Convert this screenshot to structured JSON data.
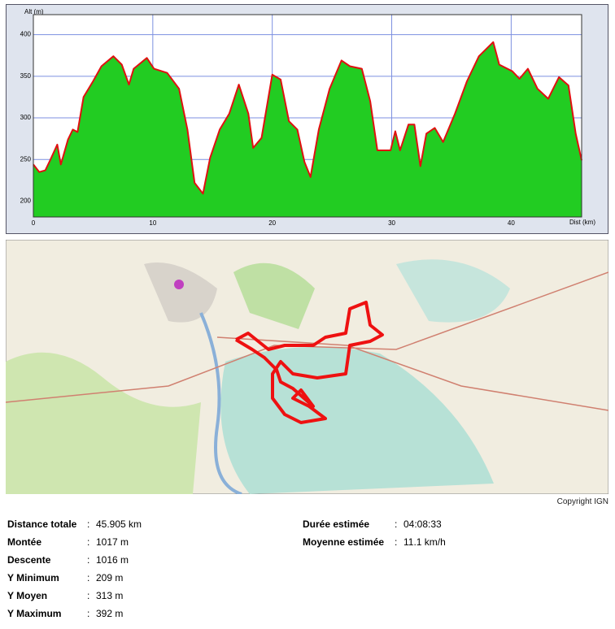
{
  "chart_data": {
    "type": "area",
    "ylabel": "Alt (m)",
    "xlabel": "Dist (km)",
    "x": [
      0,
      0.5,
      1,
      1.4,
      2,
      2.3,
      2.9,
      3.3,
      3.7,
      4.2,
      5,
      5.7,
      6.7,
      7.4,
      8,
      8.4,
      9.5,
      10.1,
      11.2,
      12.2,
      12.9,
      13.5,
      14.2,
      14.8,
      15.6,
      16.4,
      17.2,
      18,
      18.4,
      19.1,
      20,
      20.7,
      21.4,
      22.1,
      22.7,
      23.2,
      23.9,
      24.8,
      25.8,
      26.5,
      27.5,
      28.2,
      28.8,
      29.9,
      30.3,
      30.7,
      31.4,
      31.9,
      32.4,
      32.9,
      33.6,
      34.3,
      35.3,
      36.3,
      37.3,
      38.5,
      39,
      40.1,
      40.7,
      41.4,
      42.2,
      43.1,
      44,
      44.8,
      45.4,
      45.9
    ],
    "values": [
      244,
      235,
      237,
      249,
      268,
      244,
      274,
      286,
      283,
      325,
      344,
      362,
      374,
      364,
      340,
      359,
      372,
      359,
      354,
      335,
      286,
      222,
      209,
      252,
      286,
      305,
      340,
      305,
      264,
      276,
      352,
      346,
      296,
      286,
      247,
      229,
      286,
      335,
      369,
      362,
      359,
      320,
      261,
      261,
      284,
      261,
      292,
      292,
      242,
      281,
      288,
      271,
      305,
      344,
      374,
      391,
      364,
      356,
      347,
      359,
      335,
      323,
      349,
      339,
      281,
      249
    ],
    "color": "#22cc22",
    "line_color": "#e01010",
    "xlim": [
      0,
      45.9
    ],
    "ylim": [
      181,
      424
    ],
    "xticks": [
      0,
      10,
      20,
      30,
      40
    ],
    "yticks": [
      200,
      250,
      300,
      350,
      400
    ],
    "grid": true
  },
  "map": {
    "copyright": "Copyright IGN"
  },
  "stats": {
    "left": [
      {
        "label": "Distance totale",
        "value": "45.905 km"
      },
      {
        "label": "Montée",
        "value": "1017 m"
      },
      {
        "label": "Descente",
        "value": "1016 m"
      },
      {
        "label": "Y Minimum",
        "value": "209 m"
      },
      {
        "label": "Y Moyen",
        "value": "313 m"
      },
      {
        "label": "Y Maximum",
        "value": "392 m"
      }
    ],
    "right": [
      {
        "label": "Durée estimée",
        "value": "04:08:33"
      },
      {
        "label": "Moyenne estimée",
        "value": "11.1 km/h"
      }
    ]
  }
}
